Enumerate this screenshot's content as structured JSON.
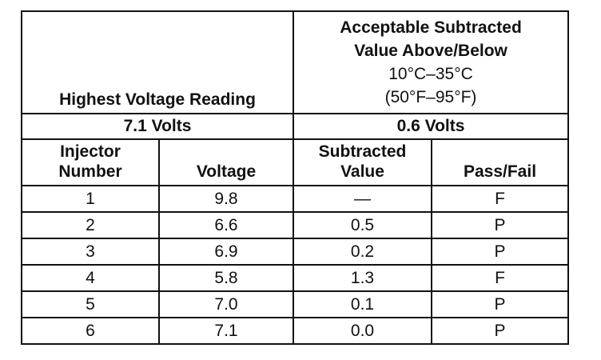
{
  "header": {
    "left_title": "Highest Voltage Reading",
    "right_title_line1": "Acceptable Subtracted",
    "right_title_line2": "Value Above/Below",
    "right_range_c": "10°C–35°C",
    "right_range_f": "(50°F–95°F)"
  },
  "summary": {
    "highest_voltage": "7.1 Volts",
    "acceptable_value": "0.6 Volts"
  },
  "columns": {
    "injector_line1": "Injector",
    "injector_line2": "Number",
    "voltage": "Voltage",
    "subtracted_line1": "Subtracted",
    "subtracted_line2": "Value",
    "pass_fail": "Pass/Fail"
  },
  "rows": [
    {
      "injector": "1",
      "voltage": "9.8",
      "subtracted": "—",
      "result": "F"
    },
    {
      "injector": "2",
      "voltage": "6.6",
      "subtracted": "0.5",
      "result": "P"
    },
    {
      "injector": "3",
      "voltage": "6.9",
      "subtracted": "0.2",
      "result": "P"
    },
    {
      "injector": "4",
      "voltage": "5.8",
      "subtracted": "1.3",
      "result": "F"
    },
    {
      "injector": "5",
      "voltage": "7.0",
      "subtracted": "0.1",
      "result": "P"
    },
    {
      "injector": "6",
      "voltage": "7.1",
      "subtracted": "0.0",
      "result": "P"
    }
  ]
}
